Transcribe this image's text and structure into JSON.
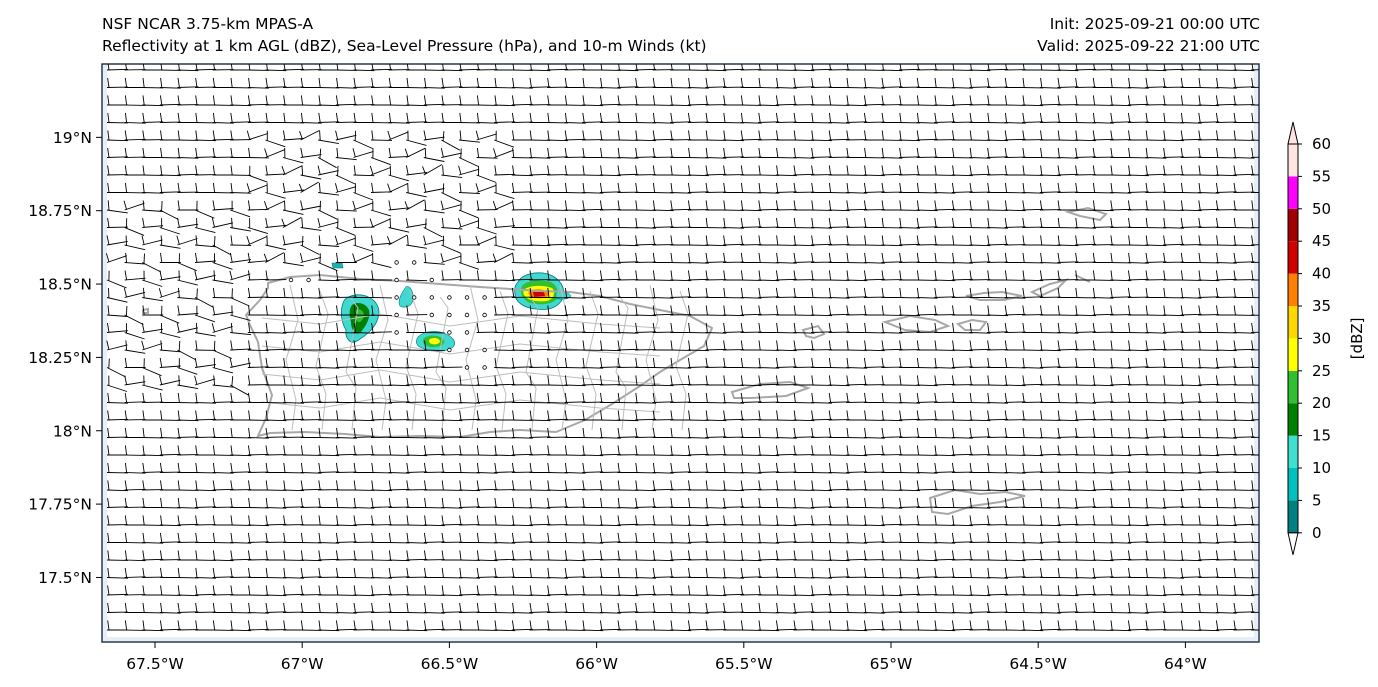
{
  "title": {
    "left_line1": "NSF NCAR 3.75-km MPAS-A",
    "left_line2": "Reflectivity at 1 km AGL (dBZ), Sea-Level Pressure (hPa), and 10-m Winds (kt)",
    "right_line1": "Init: 2025-09-21 00:00 UTC",
    "right_line2": "Valid: 2025-09-22 21:00 UTC"
  },
  "map": {
    "lon_range": [
      -67.68,
      -63.75
    ],
    "lat_range": [
      17.28,
      19.25
    ],
    "lon_ticks": [
      {
        "value": -67.5,
        "label": "67.5°W"
      },
      {
        "value": -67.0,
        "label": "67°W"
      },
      {
        "value": -66.5,
        "label": "66.5°W"
      },
      {
        "value": -66.0,
        "label": "66°W"
      },
      {
        "value": -65.5,
        "label": "65.5°W"
      },
      {
        "value": -65.0,
        "label": "65°W"
      },
      {
        "value": -64.5,
        "label": "64.5°W"
      },
      {
        "value": -64.0,
        "label": "64°W"
      }
    ],
    "lat_ticks": [
      {
        "value": 19.0,
        "label": "19°N"
      },
      {
        "value": 18.75,
        "label": "18.75°N"
      },
      {
        "value": 18.5,
        "label": "18.5°N"
      },
      {
        "value": 18.25,
        "label": "18.25°N"
      },
      {
        "value": 18.0,
        "label": "18°N"
      },
      {
        "value": 17.75,
        "label": "17.75°N"
      },
      {
        "value": 17.5,
        "label": "17.5°N"
      }
    ]
  },
  "colorbar": {
    "label": "[dBZ]",
    "ticks": [
      "0",
      "5",
      "10",
      "15",
      "20",
      "25",
      "30",
      "35",
      "40",
      "45",
      "50",
      "55",
      "60"
    ],
    "colors": [
      "#008080",
      "#00c0c0",
      "#40e0d0",
      "#008000",
      "#32c032",
      "#ffff00",
      "#ffd700",
      "#ff8000",
      "#d00000",
      "#a00000",
      "#ff00ff",
      "#ffe4e1"
    ]
  }
}
